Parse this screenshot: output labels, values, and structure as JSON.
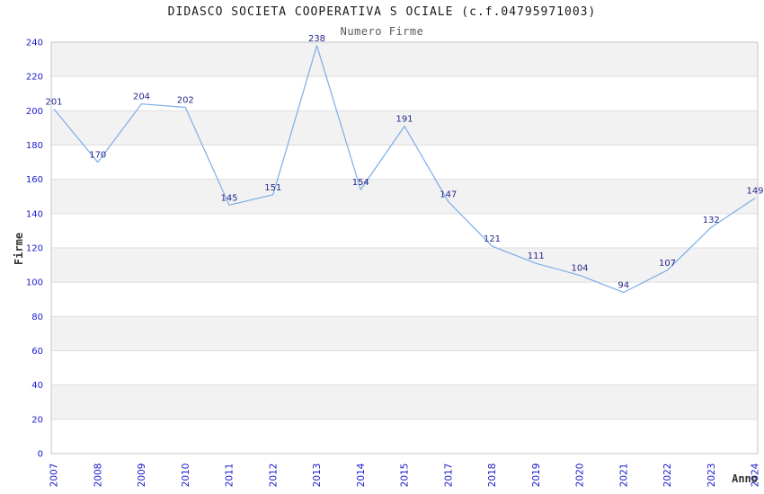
{
  "chart_data": {
    "type": "line",
    "title": "DIDASCO SOCIETA COOPERATIVA S OCIALE (c.f.04795971003)",
    "subtitle": "Numero Firme",
    "xlabel": "Anno",
    "ylabel": "Firme",
    "categories": [
      "2007",
      "2008",
      "2009",
      "2010",
      "2011",
      "2012",
      "2013",
      "2014",
      "2015",
      "2017",
      "2018",
      "2019",
      "2020",
      "2021",
      "2022",
      "2023",
      "2024"
    ],
    "values": [
      201,
      170,
      204,
      202,
      145,
      151,
      238,
      154,
      191,
      147,
      121,
      111,
      104,
      94,
      107,
      132,
      149
    ],
    "ylim": [
      0,
      240
    ],
    "ytick_step": 20,
    "grid": "horizontal-bands-alternating",
    "legend": "none",
    "data_labels": "above-points",
    "x_tick_rotation": -90,
    "colors": {
      "line": "#7aaee8",
      "data_label": "#26268c",
      "tick_label": "#1a1acc",
      "band": "#f2f2f2",
      "gridline": "#dddddd",
      "plot_border": "#c6c6c6",
      "title": "#1a1a1a",
      "subtitle": "#585858",
      "axis_title": "#333333",
      "background": "#ffffff"
    }
  }
}
